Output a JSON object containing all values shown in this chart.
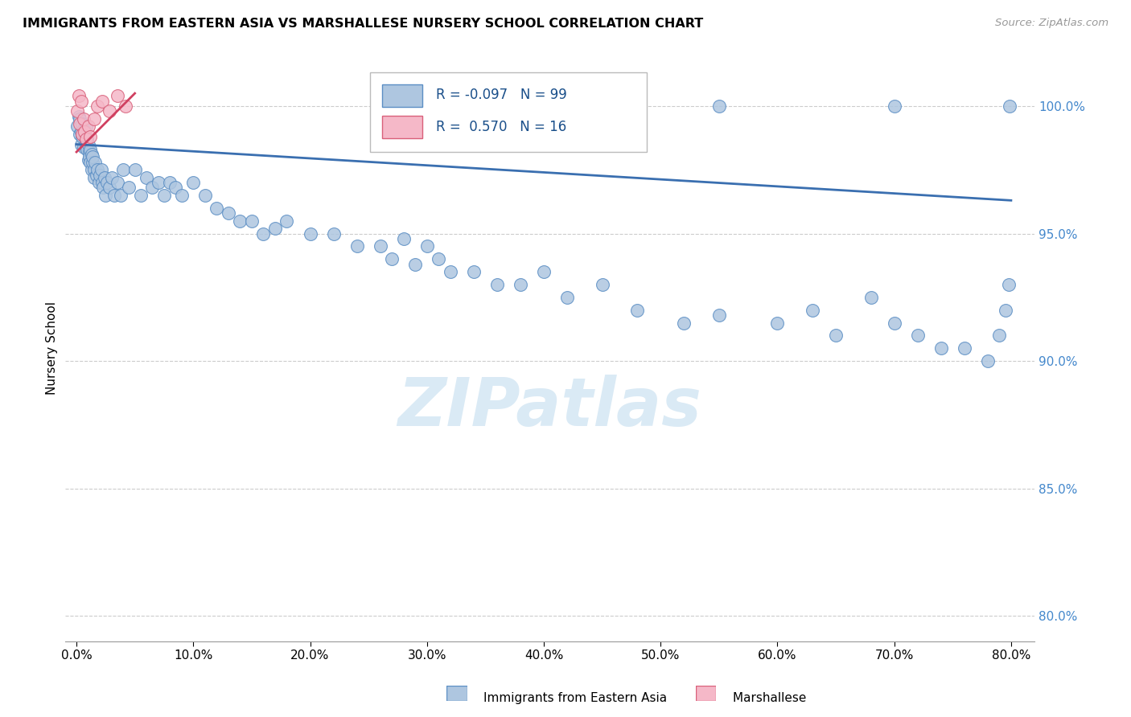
{
  "title": "IMMIGRANTS FROM EASTERN ASIA VS MARSHALLESE NURSERY SCHOOL CORRELATION CHART",
  "source": "Source: ZipAtlas.com",
  "ylabel": "Nursery School",
  "x_tick_labels": [
    "0.0%",
    "10.0%",
    "20.0%",
    "30.0%",
    "40.0%",
    "50.0%",
    "60.0%",
    "70.0%",
    "80.0%"
  ],
  "x_tick_vals": [
    0.0,
    10.0,
    20.0,
    30.0,
    40.0,
    50.0,
    60.0,
    70.0,
    80.0
  ],
  "y_tick_labels": [
    "80.0%",
    "85.0%",
    "90.0%",
    "95.0%",
    "100.0%"
  ],
  "y_tick_vals": [
    80.0,
    85.0,
    90.0,
    95.0,
    100.0
  ],
  "xlim": [
    -1.0,
    82.0
  ],
  "ylim": [
    79.0,
    102.0
  ],
  "blue_R": -0.097,
  "blue_N": 99,
  "pink_R": 0.57,
  "pink_N": 16,
  "blue_color": "#aec6e0",
  "blue_edge_color": "#5b8ec4",
  "pink_color": "#f5b8c8",
  "pink_edge_color": "#d9607a",
  "blue_line_color": "#3a6fb0",
  "pink_line_color": "#d04060",
  "watermark_text": "ZIPatlas",
  "watermark_color": "#daeaf5",
  "blue_scatter_x": [
    0.1,
    0.2,
    0.3,
    0.3,
    0.4,
    0.4,
    0.5,
    0.5,
    0.6,
    0.6,
    0.7,
    0.7,
    0.8,
    0.8,
    0.9,
    0.9,
    1.0,
    1.0,
    1.1,
    1.1,
    1.2,
    1.2,
    1.3,
    1.3,
    1.4,
    1.4,
    1.5,
    1.5,
    1.6,
    1.7,
    1.8,
    1.9,
    2.0,
    2.1,
    2.2,
    2.3,
    2.4,
    2.5,
    2.6,
    2.8,
    3.0,
    3.2,
    3.5,
    3.8,
    4.0,
    4.5,
    5.0,
    5.5,
    6.0,
    6.5,
    7.0,
    7.5,
    8.0,
    8.5,
    9.0,
    10.0,
    11.0,
    12.0,
    13.0,
    14.0,
    15.0,
    16.0,
    17.0,
    18.0,
    20.0,
    22.0,
    24.0,
    26.0,
    27.0,
    28.0,
    29.0,
    30.0,
    31.0,
    32.0,
    34.0,
    36.0,
    38.0,
    40.0,
    42.0,
    45.0,
    48.0,
    52.0,
    55.0,
    60.0,
    63.0,
    65.0,
    68.0,
    70.0,
    72.0,
    74.0,
    76.0,
    78.0,
    79.0,
    79.5,
    79.8,
    79.9,
    40.0,
    55.0,
    70.0
  ],
  "blue_scatter_y": [
    99.2,
    99.6,
    98.9,
    99.5,
    99.0,
    98.5,
    99.3,
    98.8,
    99.1,
    98.4,
    98.8,
    99.0,
    98.5,
    99.2,
    98.3,
    98.7,
    97.9,
    98.5,
    98.2,
    98.0,
    97.8,
    98.3,
    97.5,
    98.1,
    97.8,
    98.0,
    97.5,
    97.2,
    97.8,
    97.3,
    97.5,
    97.0,
    97.3,
    97.5,
    97.0,
    96.8,
    97.2,
    96.5,
    97.0,
    96.8,
    97.2,
    96.5,
    97.0,
    96.5,
    97.5,
    96.8,
    97.5,
    96.5,
    97.2,
    96.8,
    97.0,
    96.5,
    97.0,
    96.8,
    96.5,
    97.0,
    96.5,
    96.0,
    95.8,
    95.5,
    95.5,
    95.0,
    95.2,
    95.5,
    95.0,
    95.0,
    94.5,
    94.5,
    94.0,
    94.8,
    93.8,
    94.5,
    94.0,
    93.5,
    93.5,
    93.0,
    93.0,
    93.5,
    92.5,
    93.0,
    92.0,
    91.5,
    91.8,
    91.5,
    92.0,
    91.0,
    92.5,
    91.5,
    91.0,
    90.5,
    90.5,
    90.0,
    91.0,
    92.0,
    93.0,
    100.0,
    100.0,
    100.0,
    100.0
  ],
  "pink_scatter_x": [
    0.1,
    0.2,
    0.3,
    0.4,
    0.5,
    0.6,
    0.7,
    0.8,
    1.0,
    1.2,
    1.5,
    1.8,
    2.2,
    2.8,
    3.5,
    4.2
  ],
  "pink_scatter_y": [
    99.8,
    100.4,
    99.3,
    100.2,
    98.9,
    99.5,
    99.0,
    98.7,
    99.2,
    98.8,
    99.5,
    100.0,
    100.2,
    99.8,
    100.4,
    100.0
  ],
  "blue_line_x0": 0.0,
  "blue_line_x1": 80.0,
  "blue_line_y0": 98.5,
  "blue_line_y1": 96.3,
  "pink_line_x0": 0.0,
  "pink_line_x1": 5.0,
  "pink_line_y0": 98.2,
  "pink_line_y1": 100.5
}
